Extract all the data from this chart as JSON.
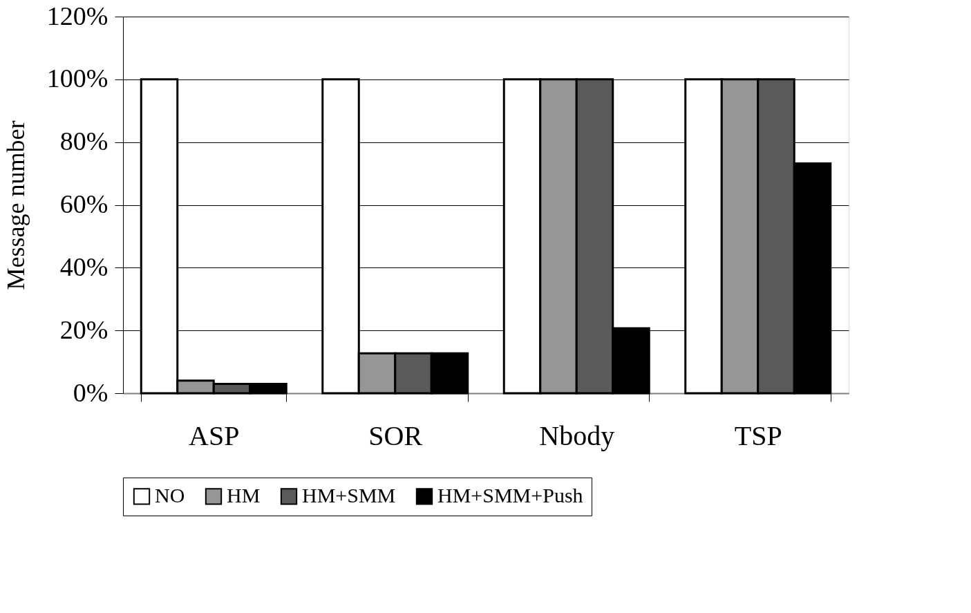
{
  "chart_data": {
    "type": "bar",
    "ylabel": "Message number",
    "categories": [
      "ASP",
      "SOR",
      "Nbody",
      "TSP"
    ],
    "series": [
      {
        "name": "NO",
        "color": "#ffffff",
        "values": [
          100,
          100,
          100,
          100
        ]
      },
      {
        "name": "HM",
        "color": "#969696",
        "values": [
          4,
          12.7,
          100,
          100
        ]
      },
      {
        "name": "HM+SMM",
        "color": "#5a5a5a",
        "values": [
          3,
          12.7,
          100,
          100
        ]
      },
      {
        "name": "HM+SMM+Push",
        "color": "#000000",
        "values": [
          3,
          12.7,
          20.7,
          73.2
        ]
      }
    ],
    "ylim": [
      0,
      120
    ],
    "yticks": [
      {
        "value": 0,
        "label": "0%"
      },
      {
        "value": 20,
        "label": "20%"
      },
      {
        "value": 40,
        "label": "40%"
      },
      {
        "value": 60,
        "label": "60%"
      },
      {
        "value": 80,
        "label": "80%"
      },
      {
        "value": 100,
        "label": "100%"
      },
      {
        "value": 120,
        "label": "120%"
      }
    ],
    "grid": "y",
    "legend": "bottom"
  }
}
